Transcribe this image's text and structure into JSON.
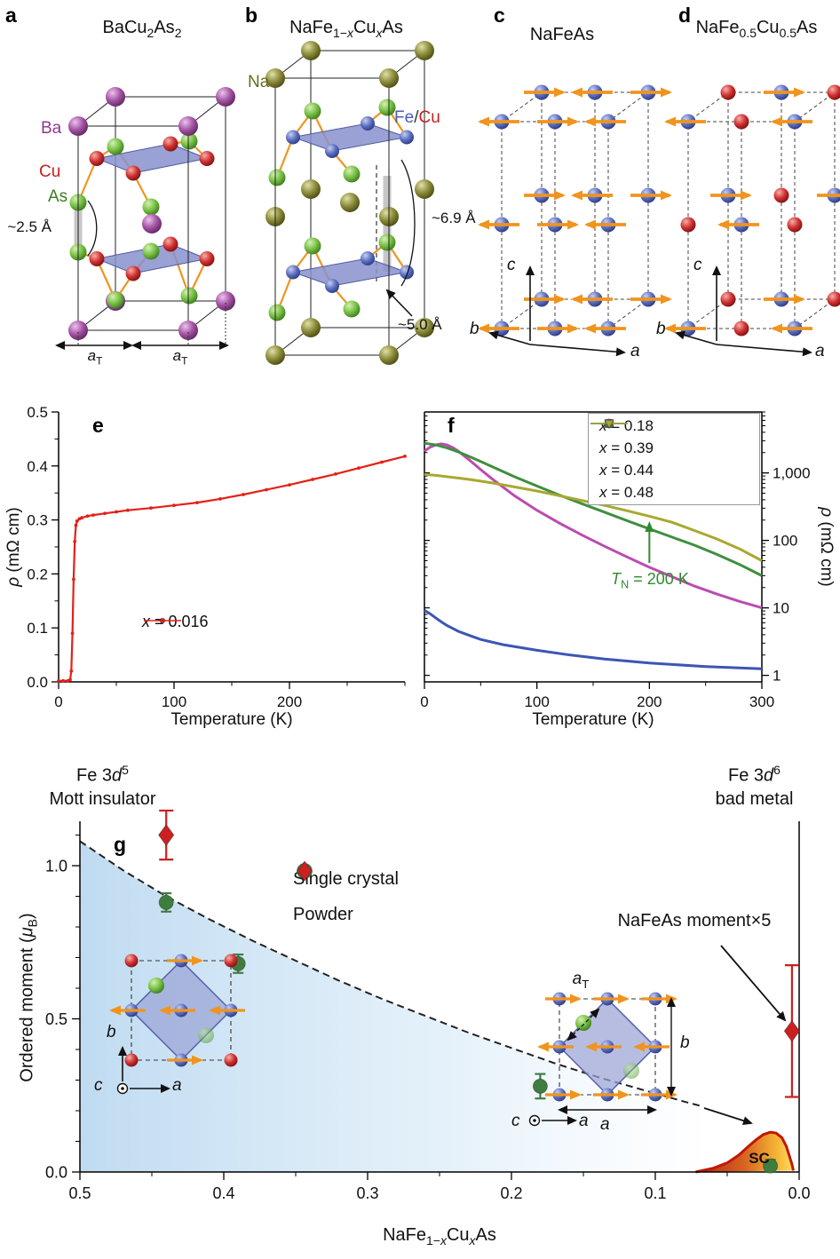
{
  "panel_a": {
    "letter": "a",
    "title": [
      {
        "t": "BaCu"
      },
      {
        "t": "2",
        "s": "sub"
      },
      {
        "t": "As"
      },
      {
        "t": "2",
        "s": "sub"
      }
    ],
    "label_ba": "Ba",
    "label_cu": "Cu",
    "label_as": "As",
    "dist_asas": "~2.5 Å",
    "axis_at": [
      {
        "t": "a",
        "s": "i"
      },
      {
        "t": "T",
        "s": "sub"
      }
    ],
    "colors": {
      "ba": "#a352a3",
      "cu": "#d03030",
      "as": "#76c045",
      "plane": "#8890cc",
      "bond": "#f0941e"
    }
  },
  "panel_b": {
    "letter": "b",
    "title": [
      {
        "t": "NaFe"
      },
      {
        "t": "1−",
        "s": "sub"
      },
      {
        "t": "x",
        "s": "subi"
      },
      {
        "t": "Cu"
      },
      {
        "t": "x",
        "s": "subi"
      },
      {
        "t": "As"
      }
    ],
    "label_na": "Na",
    "label_fe": "Fe",
    "label_slash": "/",
    "label_cu": "Cu",
    "dist_c": "~6.9 Å",
    "dist_asas": "~5.0 Å",
    "colors": {
      "na": "#7f7f2f",
      "fe": "#5a6ec0",
      "cu": "#d03030"
    }
  },
  "panel_c": {
    "letter": "c",
    "title": "NaFeAs",
    "axis_a": "a",
    "axis_b": "b",
    "axis_c": "c"
  },
  "panel_d": {
    "letter": "d",
    "title": [
      {
        "t": "NaFe"
      },
      {
        "t": "0.5",
        "s": "sub"
      },
      {
        "t": "Cu"
      },
      {
        "t": "0.5",
        "s": "sub"
      },
      {
        "t": "As"
      }
    ],
    "axis_a": "a",
    "axis_b": "b",
    "axis_c": "c"
  },
  "chart_data": [
    {
      "id": "e",
      "type": "line",
      "panel_label": "e",
      "xlabel": "Temperature (K)",
      "ylabel": [
        {
          "t": "ρ",
          "s": "i"
        },
        {
          "t": " (mΩ cm)"
        }
      ],
      "xlim": [
        0,
        300
      ],
      "ylim": [
        0,
        0.5
      ],
      "x_ticks": [
        0,
        100,
        200
      ],
      "x_minor": [
        50,
        150,
        250,
        300
      ],
      "y_ticks": [
        "0.0",
        "0.1",
        "0.2",
        "0.3",
        "0.4",
        "0.5"
      ],
      "grid": false,
      "legend_position": "inside bottom",
      "series": [
        {
          "name": [
            {
              "t": "x",
              "s": "i"
            },
            {
              "t": " = 0.016"
            }
          ],
          "color": "#e32119",
          "marker": "dot",
          "points": [
            [
              0,
              0.002
            ],
            [
              4,
              0.002
            ],
            [
              8,
              0.002
            ],
            [
              10,
              0.004
            ],
            [
              11,
              0.02
            ],
            [
              12,
              0.09
            ],
            [
              13,
              0.19
            ],
            [
              14,
              0.26
            ],
            [
              15,
              0.29
            ],
            [
              16,
              0.298
            ],
            [
              18,
              0.302
            ],
            [
              20,
              0.304
            ],
            [
              25,
              0.307
            ],
            [
              30,
              0.309
            ],
            [
              40,
              0.312
            ],
            [
              50,
              0.315
            ],
            [
              60,
              0.318
            ],
            [
              80,
              0.322
            ],
            [
              100,
              0.327
            ],
            [
              120,
              0.332
            ],
            [
              140,
              0.339
            ],
            [
              160,
              0.347
            ],
            [
              180,
              0.356
            ],
            [
              200,
              0.365
            ],
            [
              220,
              0.375
            ],
            [
              240,
              0.385
            ],
            [
              260,
              0.396
            ],
            [
              280,
              0.407
            ],
            [
              300,
              0.418
            ]
          ]
        }
      ]
    },
    {
      "id": "f",
      "type": "line",
      "panel_label": "f",
      "xlabel": "Temperature (K)",
      "ylabel": [
        {
          "t": "ρ",
          "s": "i"
        },
        {
          "t": " (mΩ cm)"
        }
      ],
      "yscale": "log",
      "xlim": [
        0,
        300
      ],
      "ylim": [
        0.8,
        8000
      ],
      "x_ticks": [
        0,
        100,
        200,
        300
      ],
      "x_minor": [
        50,
        150,
        250
      ],
      "y_ticks": [
        {
          "v": 1,
          "label": "1"
        },
        {
          "v": 10,
          "label": "10"
        },
        {
          "v": 100,
          "label": "100"
        },
        {
          "v": 1000,
          "label": "1,000"
        }
      ],
      "grid": false,
      "legend_position": "inside top-right",
      "annotation": {
        "text": [
          {
            "t": "T",
            "s": "i"
          },
          {
            "t": "N",
            "s": "sub"
          },
          {
            "t": " = 200 K"
          }
        ],
        "x": 200,
        "color": "#2e8b2e"
      },
      "series": [
        {
          "name": [
            {
              "t": "x",
              "s": "i"
            },
            {
              "t": " = 0.18"
            }
          ],
          "color": "#3b56b5",
          "marker": "square",
          "points": [
            [
              0,
              9.2
            ],
            [
              5,
              8.2
            ],
            [
              10,
              7.1
            ],
            [
              15,
              6.2
            ],
            [
              20,
              5.5
            ],
            [
              30,
              4.5
            ],
            [
              40,
              3.9
            ],
            [
              50,
              3.4
            ],
            [
              70,
              2.85
            ],
            [
              100,
              2.35
            ],
            [
              130,
              2.0
            ],
            [
              160,
              1.75
            ],
            [
              200,
              1.52
            ],
            [
              250,
              1.35
            ],
            [
              300,
              1.25
            ]
          ]
        },
        {
          "name": [
            {
              "t": "x",
              "s": "i"
            },
            {
              "t": " = 0.39"
            }
          ],
          "color": "#bb4cb0",
          "marker": "circle",
          "points": [
            [
              0,
              2100
            ],
            [
              5,
              2400
            ],
            [
              10,
              2600
            ],
            [
              15,
              2700
            ],
            [
              20,
              2600
            ],
            [
              25,
              2380
            ],
            [
              30,
              2100
            ],
            [
              40,
              1550
            ],
            [
              50,
              1120
            ],
            [
              60,
              820
            ],
            [
              80,
              460
            ],
            [
              100,
              280
            ],
            [
              120,
              180
            ],
            [
              140,
              120
            ],
            [
              160,
              82
            ],
            [
              180,
              57
            ],
            [
              200,
              40
            ],
            [
              220,
              29
            ],
            [
              240,
              21
            ],
            [
              260,
              16
            ],
            [
              280,
              12.5
            ],
            [
              300,
              10
            ]
          ]
        },
        {
          "name": [
            {
              "t": "x",
              "s": "i"
            },
            {
              "t": " = 0.44"
            }
          ],
          "color": "#3f8f3f",
          "marker": "triangle-up",
          "points": [
            [
              0,
              2750
            ],
            [
              10,
              2600
            ],
            [
              20,
              2350
            ],
            [
              30,
              2050
            ],
            [
              40,
              1750
            ],
            [
              50,
              1480
            ],
            [
              60,
              1240
            ],
            [
              80,
              880
            ],
            [
              100,
              640
            ],
            [
              120,
              470
            ],
            [
              140,
              350
            ],
            [
              160,
              262
            ],
            [
              180,
              196
            ],
            [
              200,
              148
            ],
            [
              220,
              112
            ],
            [
              240,
              85
            ],
            [
              260,
              62
            ],
            [
              280,
              44
            ],
            [
              300,
              30
            ]
          ]
        },
        {
          "name": [
            {
              "t": "x",
              "s": "i"
            },
            {
              "t": " = 0.48"
            }
          ],
          "color": "#a8a832",
          "marker": "triangle-down",
          "points": [
            [
              0,
              950
            ],
            [
              10,
              920
            ],
            [
              20,
              880
            ],
            [
              30,
              840
            ],
            [
              40,
              800
            ],
            [
              50,
              755
            ],
            [
              60,
              710
            ],
            [
              80,
              620
            ],
            [
              100,
              540
            ],
            [
              120,
              460
            ],
            [
              140,
              390
            ],
            [
              160,
              330
            ],
            [
              180,
              275
            ],
            [
              200,
              228
            ],
            [
              220,
              186
            ],
            [
              240,
              140
            ],
            [
              260,
              105
            ],
            [
              280,
              75
            ],
            [
              300,
              50
            ]
          ]
        }
      ]
    },
    {
      "id": "g",
      "type": "scatter",
      "panel_label": "g",
      "xlabel": [
        {
          "t": "NaFe"
        },
        {
          "t": "1−",
          "s": "sub"
        },
        {
          "t": "x",
          "s": "subi"
        },
        {
          "t": "Cu"
        },
        {
          "t": "x",
          "s": "subi"
        },
        {
          "t": "As"
        }
      ],
      "ylabel": [
        {
          "t": "Ordered moment ("
        },
        {
          "t": "μ",
          "s": "i"
        },
        {
          "t": "B",
          "s": "sub"
        },
        {
          "t": ")"
        }
      ],
      "xlim": [
        0.5,
        0.0
      ],
      "ylim": [
        0,
        1.145
      ],
      "x_ticks": [
        "0.5",
        "0.4",
        "0.3",
        "0.2",
        "0.1",
        "0.0"
      ],
      "y_ticks": [
        "0.0",
        "0.5",
        "1.0"
      ],
      "corner_left": {
        "line1": [
          {
            "t": "Fe 3"
          },
          {
            "t": "d",
            "s": "i"
          },
          {
            "t": "5",
            "s": "sup"
          }
        ],
        "line2": "Mott insulator"
      },
      "corner_right": {
        "line1": [
          {
            "t": "Fe 3"
          },
          {
            "t": "d",
            "s": "i"
          },
          {
            "t": "6",
            "s": "sup"
          }
        ],
        "line2": "bad metal"
      },
      "annotation": "NaFeAs moment×5",
      "sc_label": "SC",
      "series": [
        {
          "name": "Single crystal",
          "color": "#3f7d3f",
          "marker": "circle",
          "points": [
            [
              0.44,
              0.88,
              0.03
            ],
            [
              0.39,
              0.68,
              0.03
            ],
            [
              0.18,
              0.28,
              0.04
            ],
            [
              0.02,
              0.02,
              0.02
            ]
          ]
        },
        {
          "name": "Powder",
          "color": "#cc1f1f",
          "marker": "diamond",
          "points": [
            [
              0.44,
              1.1,
              0.08
            ],
            [
              0.005,
              0.46,
              0.215
            ]
          ]
        }
      ],
      "boundary": [
        [
          0.5,
          1.08
        ],
        [
          0.47,
          0.985
        ],
        [
          0.44,
          0.9
        ],
        [
          0.41,
          0.825
        ],
        [
          0.38,
          0.755
        ],
        [
          0.35,
          0.69
        ],
        [
          0.32,
          0.625
        ],
        [
          0.29,
          0.565
        ],
        [
          0.26,
          0.51
        ],
        [
          0.23,
          0.455
        ],
        [
          0.2,
          0.405
        ],
        [
          0.17,
          0.355
        ],
        [
          0.14,
          0.31
        ],
        [
          0.11,
          0.27
        ],
        [
          0.08,
          0.23
        ],
        [
          0.068,
          0.215
        ]
      ],
      "sc_dome": [
        [
          0.072,
          0
        ],
        [
          0.06,
          0.012
        ],
        [
          0.05,
          0.03
        ],
        [
          0.042,
          0.055
        ],
        [
          0.035,
          0.085
        ],
        [
          0.03,
          0.105
        ],
        [
          0.025,
          0.122
        ],
        [
          0.02,
          0.13
        ],
        [
          0.016,
          0.127
        ],
        [
          0.012,
          0.112
        ],
        [
          0.009,
          0.085
        ],
        [
          0.007,
          0.055
        ],
        [
          0.005,
          0.025
        ],
        [
          0.004,
          0.005
        ]
      ],
      "inset_left": {
        "axis_a": "a",
        "axis_b": "b",
        "axis_c": "c"
      },
      "inset_right": {
        "axis_a": "a",
        "axis_b": "b",
        "axis_c": "c",
        "axis_at": [
          {
            "t": "a",
            "s": "i"
          },
          {
            "t": "T",
            "s": "sub"
          }
        ],
        "axis_b2": "b",
        "axis_a2": "a"
      }
    }
  ]
}
